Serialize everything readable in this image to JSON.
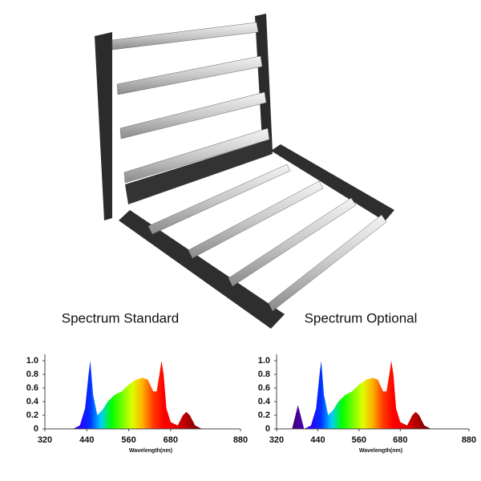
{
  "chart_data": [
    {
      "type": "area",
      "title": "Spectrum Standard",
      "xlabel": "Wavelength(nm)",
      "x": [
        400,
        420,
        435,
        445,
        450,
        458,
        470,
        485,
        500,
        520,
        540,
        560,
        580,
        600,
        615,
        630,
        640,
        648,
        654,
        660,
        668,
        680,
        700,
        715,
        725,
        735,
        750,
        770
      ],
      "values": [
        0,
        0.05,
        0.3,
        0.8,
        1.0,
        0.5,
        0.2,
        0.28,
        0.4,
        0.5,
        0.55,
        0.65,
        0.72,
        0.75,
        0.72,
        0.55,
        0.55,
        0.8,
        1.0,
        0.8,
        0.3,
        0.1,
        0.05,
        0.2,
        0.25,
        0.2,
        0.05,
        0
      ],
      "xlim": [
        320,
        880
      ],
      "xticks": [
        320,
        440,
        560,
        680,
        880
      ],
      "ylim": [
        0,
        1
      ],
      "yticks": [
        0,
        0.2,
        0.4,
        0.6,
        0.8,
        {
          "value": 1,
          "label": "1.0"
        }
      ]
    },
    {
      "type": "area",
      "title": "Spectrum Optional",
      "xlabel": "Wavelength(nm)",
      "x": [
        365,
        375,
        382,
        390,
        400,
        420,
        435,
        445,
        450,
        458,
        470,
        485,
        500,
        520,
        540,
        560,
        580,
        600,
        615,
        630,
        640,
        648,
        654,
        660,
        668,
        680,
        700,
        715,
        725,
        735,
        750,
        770
      ],
      "values": [
        0,
        0.2,
        0.35,
        0.2,
        0,
        0.05,
        0.3,
        0.8,
        1.0,
        0.5,
        0.2,
        0.28,
        0.4,
        0.5,
        0.55,
        0.65,
        0.72,
        0.75,
        0.72,
        0.55,
        0.55,
        0.8,
        1.0,
        0.8,
        0.3,
        0.1,
        0.05,
        0.2,
        0.25,
        0.2,
        0.05,
        0
      ],
      "xlim": [
        320,
        880
      ],
      "xticks": [
        320,
        440,
        560,
        680,
        880
      ],
      "ylim": [
        0,
        1
      ],
      "yticks": [
        0,
        0.2,
        0.4,
        0.6,
        0.8,
        {
          "value": 1,
          "label": "1.0"
        }
      ]
    }
  ]
}
